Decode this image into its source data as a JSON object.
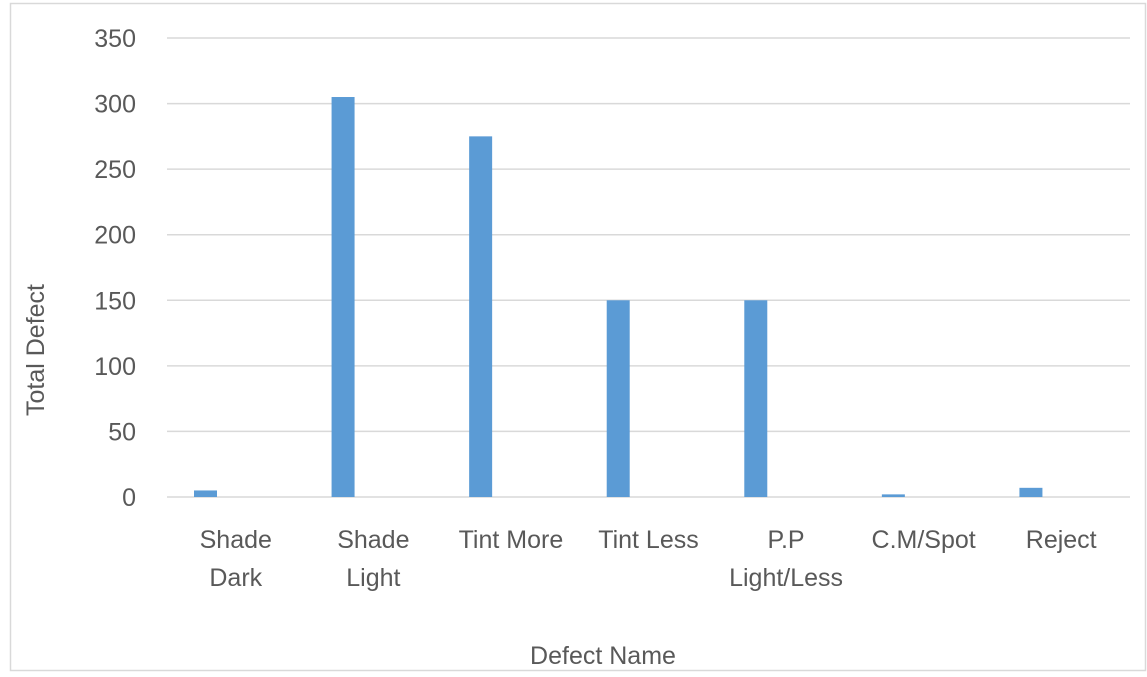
{
  "chart_data": {
    "type": "bar",
    "categories": [
      [
        "Shade",
        "Dark"
      ],
      [
        "Shade",
        "Light"
      ],
      [
        "Tint More"
      ],
      [
        "Tint Less"
      ],
      [
        "P.P",
        "Light/Less"
      ],
      [
        "C.M/Spot"
      ],
      [
        "Reject"
      ]
    ],
    "values": [
      5,
      305,
      275,
      150,
      150,
      2,
      7
    ],
    "xlabel": "Defect Name",
    "ylabel": "Total Defect",
    "ylim": [
      0,
      350
    ],
    "yticks": [
      0,
      50,
      100,
      150,
      200,
      250,
      300,
      350
    ],
    "grid": true,
    "legend": "none",
    "colors": {
      "bar": "#5B9BD5",
      "grid": "#D9D9D9",
      "text": "#595959",
      "frame": "#D9D9D9"
    }
  }
}
